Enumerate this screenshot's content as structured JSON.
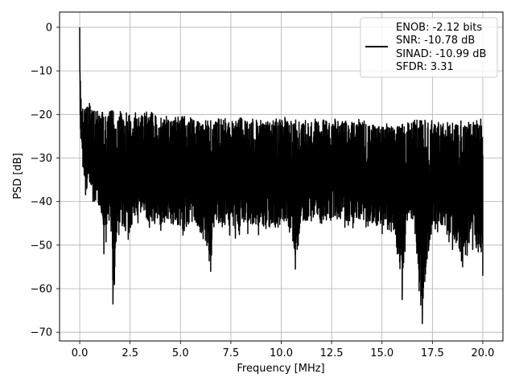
{
  "chart_data": {
    "type": "line",
    "xlabel": "Frequency [MHz]",
    "ylabel": "PSD [dB]",
    "xlim": [
      -1.0,
      21.0
    ],
    "ylim": [
      -72.0,
      3.5
    ],
    "grid": true,
    "legend_position": "top-right",
    "x_ticks": [
      0.0,
      2.5,
      5.0,
      7.5,
      10.0,
      12.5,
      15.0,
      17.5,
      20.0
    ],
    "x_tick_labels": [
      "0.0",
      "2.5",
      "5.0",
      "7.5",
      "10.0",
      "12.5",
      "15.0",
      "17.5",
      "20.0"
    ],
    "y_ticks": [
      0,
      -10,
      -20,
      -30,
      -40,
      -50,
      -60,
      -70
    ],
    "y_tick_labels": [
      "0",
      "−10",
      "−20",
      "−30",
      "−40",
      "−50",
      "−60",
      "−70"
    ],
    "legend": {
      "line1": "ENOB: -2.12 bits",
      "line2": "SNR: -10.78 dB",
      "line3": "SINAD: -10.99 dB",
      "line4": "SFDR: 3.31"
    },
    "series": [
      {
        "color": "#000000",
        "x": [
          0.0,
          0.02,
          0.05,
          0.08,
          0.12,
          0.15,
          0.2,
          0.25,
          0.3,
          0.4,
          0.5,
          0.6,
          0.8,
          1.0,
          1.2,
          1.5,
          1.65,
          2.0,
          2.3,
          2.6,
          3.0,
          3.5,
          4.0,
          4.3,
          4.5,
          5.0,
          5.5,
          6.0,
          6.5,
          6.7,
          7.0,
          7.5,
          8.0,
          8.5,
          9.0,
          9.5,
          9.7,
          10.0,
          10.5,
          10.7,
          11.0,
          11.5,
          12.0,
          12.5,
          13.0,
          13.5,
          14.0,
          14.5,
          15.0,
          15.5,
          16.0,
          16.2,
          16.5,
          17.0,
          17.5,
          18.0,
          18.5,
          19.0,
          19.5,
          20.0
        ],
        "upper": [
          0,
          -9,
          -13,
          -15,
          -16,
          -17,
          -18,
          -17,
          -18,
          -17,
          -17,
          -18,
          -18,
          -19,
          -19,
          -19,
          -19,
          -19,
          -19,
          -19,
          -20,
          -19,
          -20,
          -20,
          -21,
          -20,
          -20,
          -21,
          -21,
          -21,
          -20,
          -21,
          -20,
          -21,
          -21,
          -21,
          -21,
          -20,
          -21,
          -21,
          -21,
          -21,
          -21,
          -21,
          -21,
          -21,
          -21,
          -22,
          -22,
          -22,
          -22,
          -22,
          -21,
          -21,
          -21,
          -22,
          -21,
          -21,
          -21,
          -21
        ],
        "lower": [
          -4,
          -21,
          -27,
          -28,
          -31,
          -33,
          -35,
          -39,
          -42,
          -37,
          -39,
          -40,
          -44,
          -42,
          -52,
          -45,
          -63.5,
          -48,
          -50,
          -48,
          -45,
          -47,
          -48,
          -46,
          -48,
          -48,
          -47,
          -50,
          -56,
          -46,
          -47,
          -48,
          -49,
          -47,
          -48,
          -48,
          -49,
          -47,
          -49,
          -55.5,
          -47,
          -46,
          -47,
          -46,
          -46,
          -47,
          -46,
          -47,
          -48,
          -47,
          -62.5,
          -47,
          -46,
          -68,
          -47,
          -48,
          -51,
          -55,
          -51,
          -57
        ]
      }
    ]
  }
}
